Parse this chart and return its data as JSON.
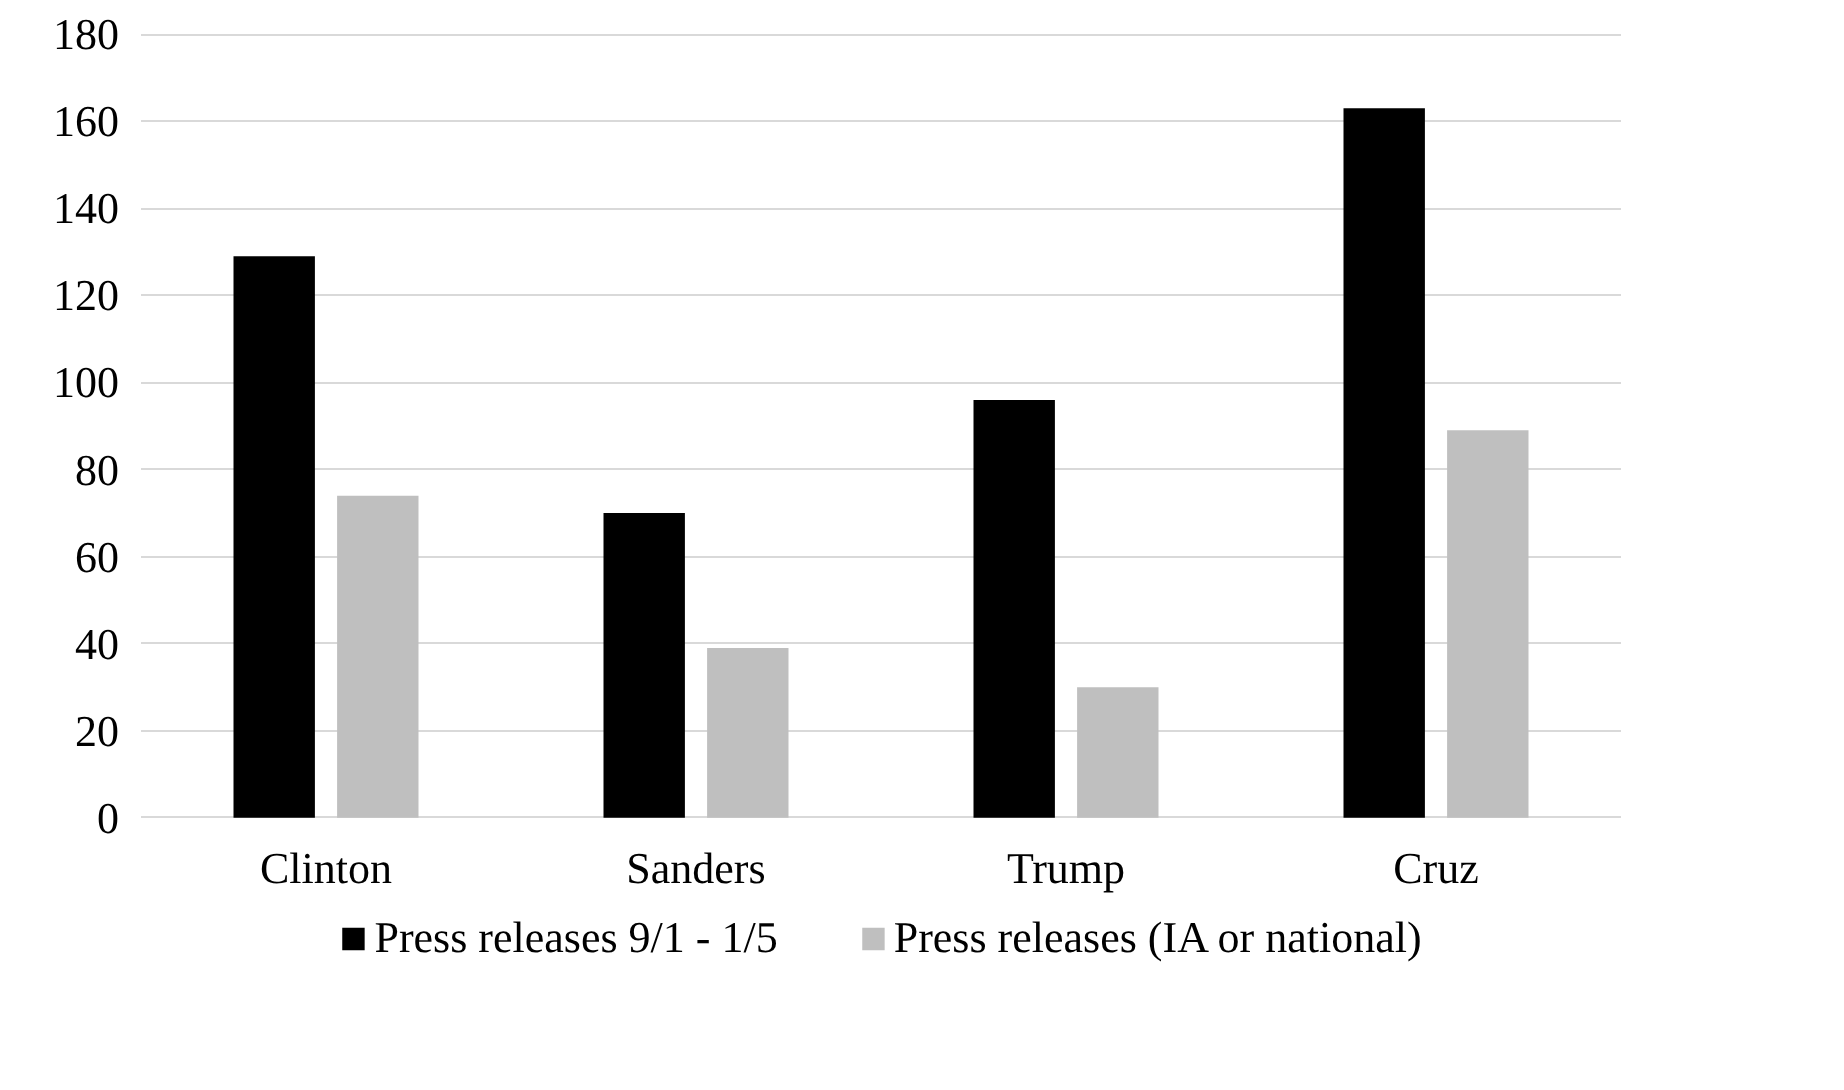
{
  "chart_data": {
    "type": "bar",
    "categories": [
      "Clinton",
      "Sanders",
      "Trump",
      "Cruz"
    ],
    "series": [
      {
        "name": "Press releases 9/1 - 1/5",
        "color": "#000000",
        "values": [
          129,
          70,
          96,
          163
        ]
      },
      {
        "name": "Press releases (IA or national)",
        "color": "#bfbfbf",
        "values": [
          74,
          39,
          30,
          89
        ]
      }
    ],
    "ylim": [
      0,
      180
    ],
    "yticks": [
      0,
      20,
      40,
      60,
      80,
      100,
      120,
      140,
      160,
      180
    ],
    "grid": "y",
    "legend": "bottom"
  }
}
